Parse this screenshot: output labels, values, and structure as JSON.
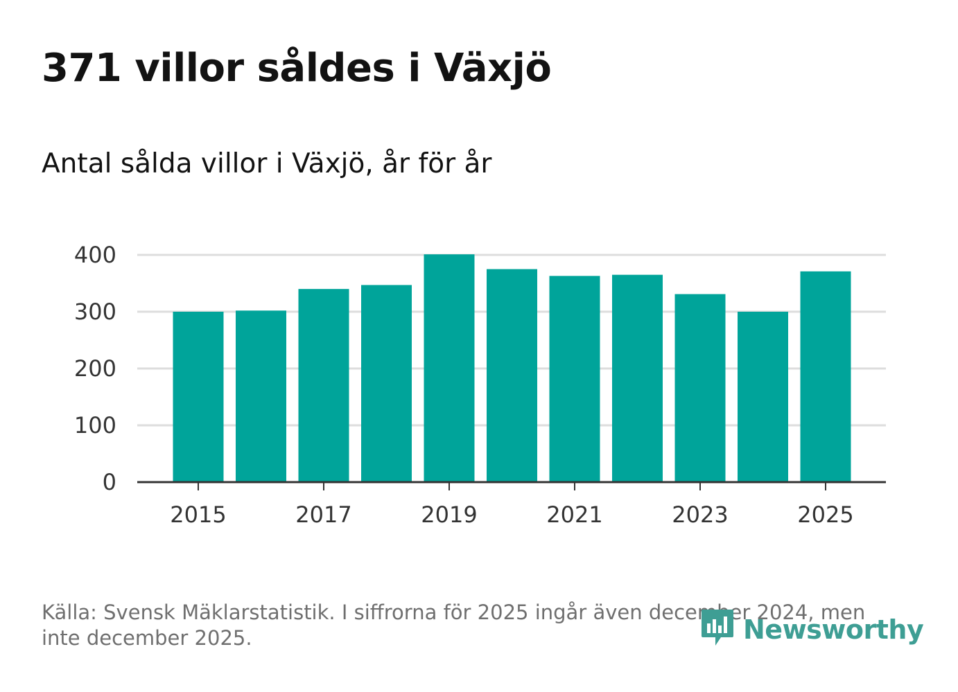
{
  "title": "371 villor såldes i Växjö",
  "subtitle": "Antal sålda villor i Växjö, år för år",
  "source": "Källa: Svensk Mäklarstatistik. I siffrorna för 2025 ingår även december 2024, men inte december 2025.",
  "brand": {
    "name": "Newsworthy",
    "color": "#3e9e94",
    "icon": "newsworthy-logo-icon"
  },
  "colors": {
    "bar": "#00a49a",
    "grid": "#dddddd",
    "axis": "#333333"
  },
  "chart_data": {
    "type": "bar",
    "title": "371 villor såldes i Växjö",
    "subtitle": "Antal sålda villor i Växjö, år för år",
    "xlabel": "",
    "ylabel": "",
    "categories": [
      "2015",
      "2016",
      "2017",
      "2018",
      "2019",
      "2020",
      "2021",
      "2022",
      "2023",
      "2024",
      "2025"
    ],
    "values": [
      300,
      302,
      340,
      347,
      401,
      375,
      363,
      365,
      331,
      300,
      371
    ],
    "ylim": [
      0,
      400
    ],
    "yticks": [
      0,
      100,
      200,
      300,
      400
    ],
    "xtick_labels": [
      "2015",
      "2017",
      "2019",
      "2021",
      "2023",
      "2025"
    ],
    "grid": true,
    "legend": "none"
  }
}
